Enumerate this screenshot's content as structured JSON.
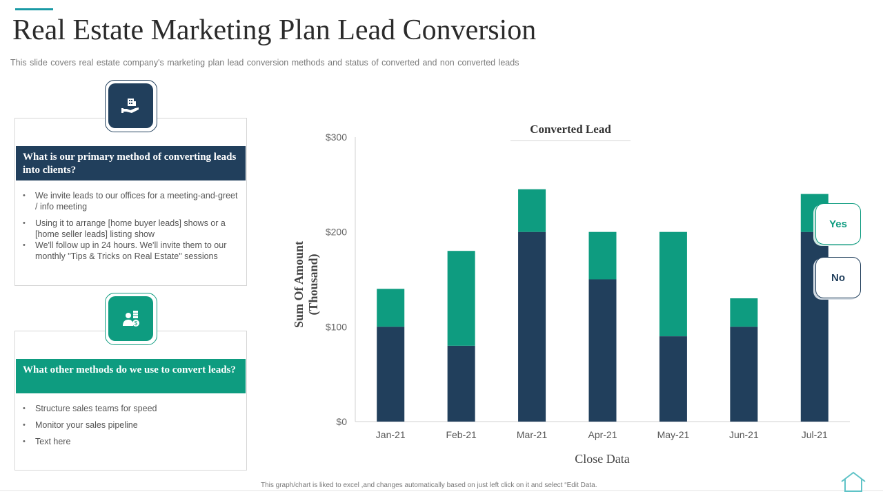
{
  "header": {
    "title": "Real Estate Marketing Plan Lead Conversion",
    "subtitle": "This slide covers real estate company's marketing plan lead conversion methods and status of converted and non converted leads"
  },
  "cards": [
    {
      "icon": "hand-building-icon",
      "heading": "What is our primary method of converting leads into clients?",
      "bullets": [
        "We invite leads to our offices for a meeting-and-greet / info meeting",
        "Using it to arrange [home buyer leads] shows or a [home seller leads] listing show",
        "We'll follow up in 24 hours. We'll invite them to our monthly \"Tips & Tricks on Real Estate\" sessions"
      ]
    },
    {
      "icon": "agent-money-icon",
      "heading": "What other methods do we use to convert leads?",
      "bullets": [
        "Structure sales teams for speed",
        "Monitor your sales pipeline",
        "Text here"
      ]
    }
  ],
  "chart_data": {
    "type": "bar",
    "stacked": true,
    "title": "Converted Lead",
    "xlabel": "Close Data",
    "ylabel": "Sum Of Amount (Thousand)",
    "ylabel_lines": [
      "Sum Of Amount",
      "(Thousand)"
    ],
    "categories": [
      "Jan-21",
      "Feb-21",
      "Mar-21",
      "Apr-21",
      "May-21",
      "Jun-21",
      "Jul-21"
    ],
    "series": [
      {
        "name": "No",
        "color": "#213f5c",
        "values": [
          100,
          80,
          200,
          150,
          90,
          100,
          200
        ]
      },
      {
        "name": "Yes",
        "color": "#0e9c80",
        "values": [
          40,
          100,
          45,
          50,
          110,
          30,
          40
        ]
      }
    ],
    "ylim": [
      0,
      300
    ],
    "yticks": [
      0,
      100,
      200,
      300
    ],
    "ytick_labels": [
      "$0",
      "$100",
      "$200",
      "$300"
    ],
    "legend": [
      {
        "label": "Yes",
        "color": "#0e9c80"
      },
      {
        "label": "No",
        "color": "#213f5c"
      }
    ]
  },
  "footer": {
    "note": "This graph/chart is liked to excel ,and changes automatically based on just left click on it and select “Edit Data."
  },
  "colors": {
    "navy": "#213f5c",
    "teal": "#0e9c80",
    "accent": "#1a9aa5"
  }
}
